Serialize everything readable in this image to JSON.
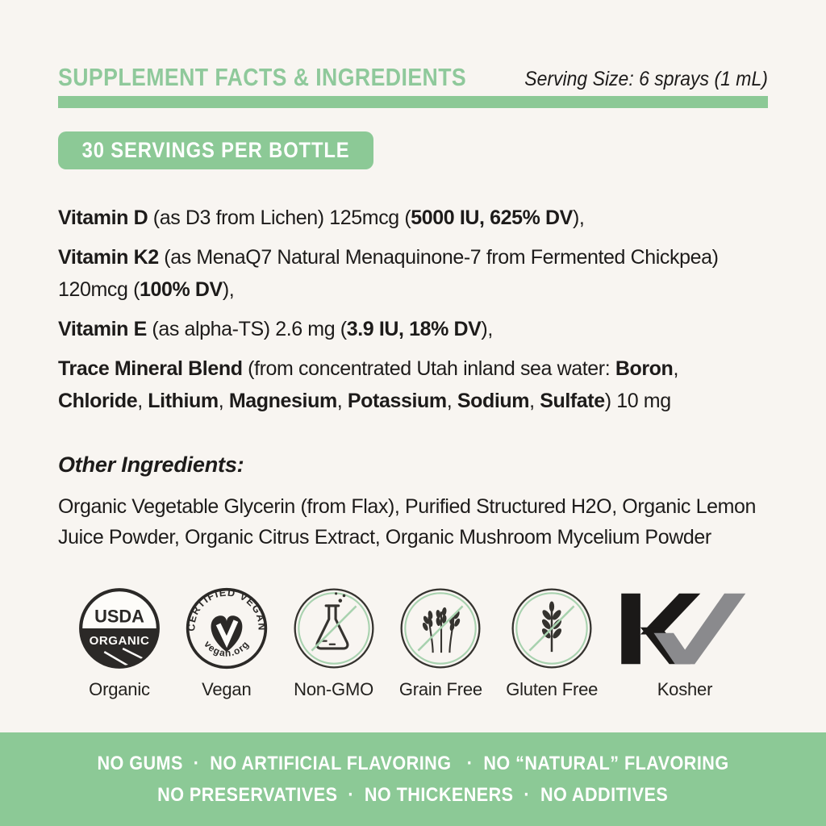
{
  "colors": {
    "background": "#f8f5f1",
    "green": "#8cc996",
    "green_title": "#8fc99b",
    "green_light_ring": "#a8d2af",
    "ink": "#1d1b1a",
    "badge_dark": "#2b2927",
    "kosher_black": "#1b1918",
    "kosher_gray": "#8a8a8d"
  },
  "header": {
    "title": "SUPPLEMENT FACTS & INGREDIENTS",
    "serving_size": "Serving Size: 6 sprays (1 mL)"
  },
  "servings_badge": {
    "label": "30 SERVINGS PER BOTTLE"
  },
  "facts": [
    {
      "parts": [
        {
          "t": "Vitamin D",
          "b": true
        },
        {
          "t": " (as D3 from Lichen) 125mcg (",
          "b": false
        },
        {
          "t": "5000 IU, 625% DV",
          "b": true
        },
        {
          "t": "),",
          "b": false
        }
      ]
    },
    {
      "parts": [
        {
          "t": "Vitamin K2",
          "b": true
        },
        {
          "t": " (as MenaQ7 Natural Menaquinone-7 from Fermented Chickpea) 120mcg (",
          "b": false
        },
        {
          "t": "100% DV",
          "b": true
        },
        {
          "t": "),",
          "b": false
        }
      ]
    },
    {
      "parts": [
        {
          "t": "Vitamin E",
          "b": true
        },
        {
          "t": " (as alpha-TS) 2.6 mg (",
          "b": false
        },
        {
          "t": "3.9 IU, 18% DV",
          "b": true
        },
        {
          "t": "),",
          "b": false
        }
      ]
    },
    {
      "parts": [
        {
          "t": "Trace Mineral Blend",
          "b": true
        },
        {
          "t": " (from concentrated Utah inland sea water: ",
          "b": false
        },
        {
          "t": "Boron",
          "b": true
        },
        {
          "t": ", ",
          "b": false
        },
        {
          "t": "Chloride",
          "b": true
        },
        {
          "t": ", ",
          "b": false
        },
        {
          "t": "Lithium",
          "b": true
        },
        {
          "t": ", ",
          "b": false
        },
        {
          "t": "Magnesium",
          "b": true
        },
        {
          "t": ", ",
          "b": false
        },
        {
          "t": "Potassium",
          "b": true
        },
        {
          "t": ", ",
          "b": false
        },
        {
          "t": "Sodium",
          "b": true
        },
        {
          "t": ", ",
          "b": false
        },
        {
          "t": "Sulfate",
          "b": true
        },
        {
          "t": ") 10 mg",
          "b": false
        }
      ]
    }
  ],
  "other_ingredients": {
    "heading": "Other Ingredients:",
    "text": "Organic Vegetable Glycerin (from Flax), Purified Structured H2O, Organic Lemon Juice Powder, Organic Citrus Extract, Organic Mushroom Mycelium Powder"
  },
  "badges": [
    {
      "label": "Organic",
      "icon": "usda-organic-seal",
      "seal_top": "USDA",
      "seal_bottom": "ORGANIC"
    },
    {
      "label": "Vegan",
      "icon": "certified-vegan-seal",
      "arc_top": "CERTIFIED VEGAN",
      "arc_bottom": "vegan.org"
    },
    {
      "label": "Non-GMO",
      "icon": "crossed-flask"
    },
    {
      "label": "Grain Free",
      "icon": "crossed-grain-stalks"
    },
    {
      "label": "Gluten Free",
      "icon": "crossed-wheat-ear"
    },
    {
      "label": "Kosher",
      "icon": "kv-kosher-mark"
    }
  ],
  "banner": {
    "line1": "NO GUMS  ·  NO ARTIFICIAL FLAVORING   ·  NO “NATURAL” FLAVORING",
    "line2": "NO PRESERVATIVES  ·  NO THICKENERS  ·  NO ADDITIVES"
  }
}
